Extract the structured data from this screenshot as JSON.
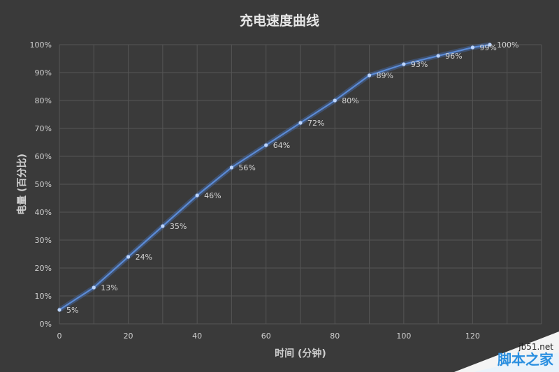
{
  "chart_data": {
    "type": "line",
    "title": "充电速度曲线",
    "xlabel": "时间 (分钟)",
    "ylabel": "电量 (百分比)",
    "xlim": [
      0,
      140
    ],
    "ylim": [
      0,
      100
    ],
    "x_ticks": [
      "0",
      "20",
      "40",
      "60",
      "80",
      "100",
      "120"
    ],
    "y_ticks": [
      "0%",
      "10%",
      "20%",
      "30%",
      "40%",
      "50%",
      "60%",
      "70%",
      "80%",
      "90%",
      "100%"
    ],
    "grid": true,
    "x": [
      0,
      10,
      20,
      30,
      40,
      50,
      60,
      70,
      80,
      90,
      100,
      110,
      120,
      125
    ],
    "series": [
      {
        "values": [
          5,
          13,
          24,
          35,
          46,
          56,
          64,
          72,
          80,
          89,
          93,
          96,
          99,
          100
        ],
        "labels": [
          "5%",
          "13%",
          "24%",
          "35%",
          "46%",
          "56%",
          "64%",
          "72%",
          "80%",
          "89%",
          "93%",
          "96%",
          "99%",
          "100%"
        ],
        "color": "#5b8bd6"
      }
    ]
  },
  "watermark": {
    "url": "jb51.net",
    "name": "脚本之家"
  }
}
